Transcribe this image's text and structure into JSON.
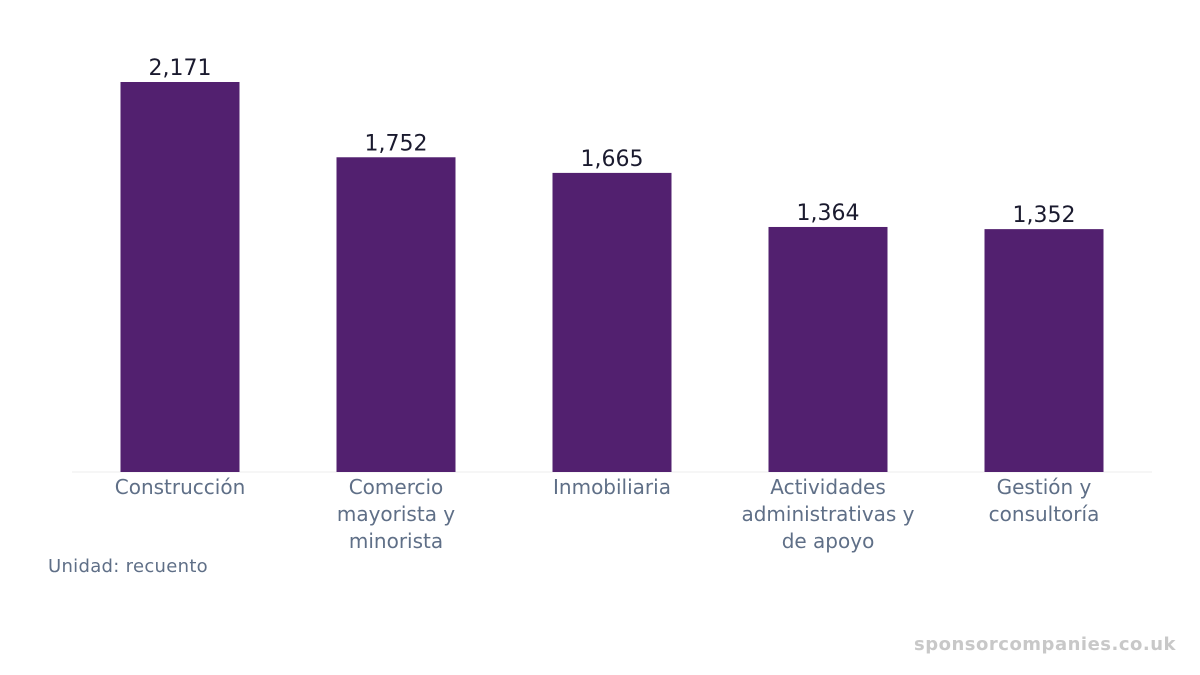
{
  "chart_data": {
    "type": "bar",
    "categories": [
      [
        "Construcción"
      ],
      [
        "Comercio",
        "mayorista y",
        "minorista"
      ],
      [
        "Inmobiliaria"
      ],
      [
        "Actividades",
        "administrativas y",
        "de apoyo"
      ],
      [
        "Gestión y",
        "consultoría"
      ]
    ],
    "values": [
      2171,
      1752,
      1665,
      1364,
      1352
    ],
    "value_labels": [
      "2,171",
      "1,752",
      "1,665",
      "1,364",
      "1,352"
    ],
    "ylim": [
      0,
      2171
    ],
    "grid": false,
    "bar_color": "#52206f",
    "axis_line_color": "#eeeeee"
  },
  "unit_note": "Unidad: recuento",
  "watermark": "sponsorcompanies.co.uk"
}
